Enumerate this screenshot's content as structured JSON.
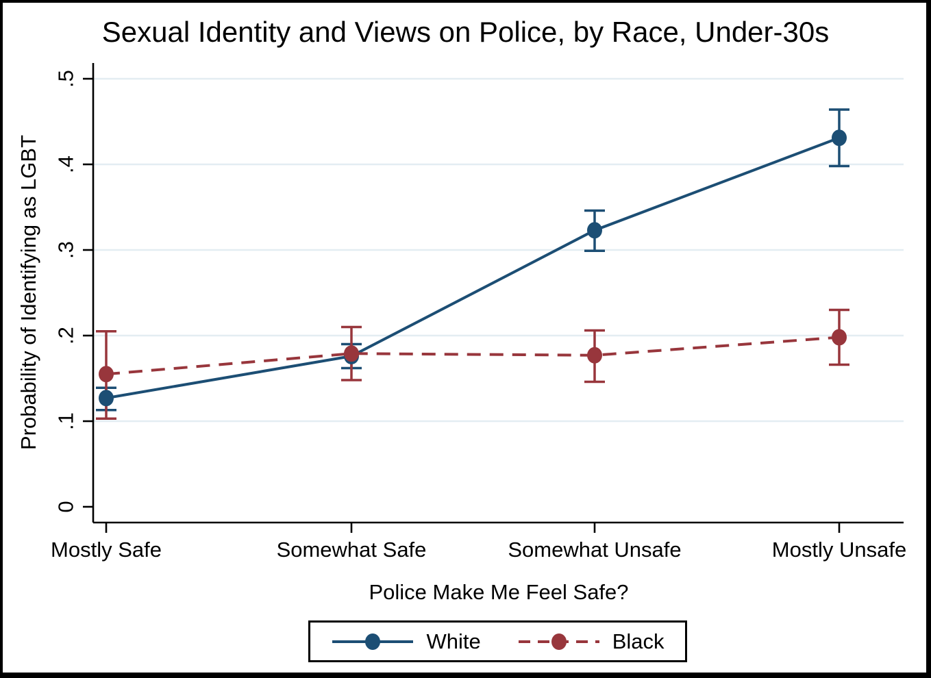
{
  "chart_data": {
    "type": "line",
    "title": "Sexual Identity and Views on Police, by Race, Under-30s",
    "xlabel": "Police Make Me Feel Safe?",
    "ylabel": "Probability of Identifying as LGBT",
    "categories": [
      "Mostly Safe",
      "Somewhat Safe",
      "Somewhat Unsafe",
      "Mostly Unsafe"
    ],
    "y_ticks": [
      "0",
      ".1",
      ".2",
      ".3",
      ".4",
      ".5"
    ],
    "y_tick_values": [
      0,
      0.1,
      0.2,
      0.3,
      0.4,
      0.5
    ],
    "ylim": [
      0,
      0.5
    ],
    "grid": true,
    "legend_position": "bottom",
    "error_bars": true,
    "series": [
      {
        "name": "White",
        "color": "#1c4e74",
        "line_style": "solid",
        "values": [
          0.127,
          0.176,
          0.323,
          0.431
        ],
        "ci_low": [
          0.113,
          0.162,
          0.299,
          0.398
        ],
        "ci_high": [
          0.139,
          0.19,
          0.346,
          0.464
        ]
      },
      {
        "name": "Black",
        "color": "#98363c",
        "line_style": "dashed",
        "values": [
          0.155,
          0.179,
          0.177,
          0.198
        ],
        "ci_low": [
          0.103,
          0.148,
          0.146,
          0.166
        ],
        "ci_high": [
          0.205,
          0.21,
          0.206,
          0.23
        ]
      }
    ]
  },
  "colors": {
    "gridline": "#e3edf2",
    "axis": "#000000",
    "background": "#ffffff",
    "frame_border": "#000000",
    "white_series": "#1c4e74",
    "black_series": "#98363c"
  }
}
